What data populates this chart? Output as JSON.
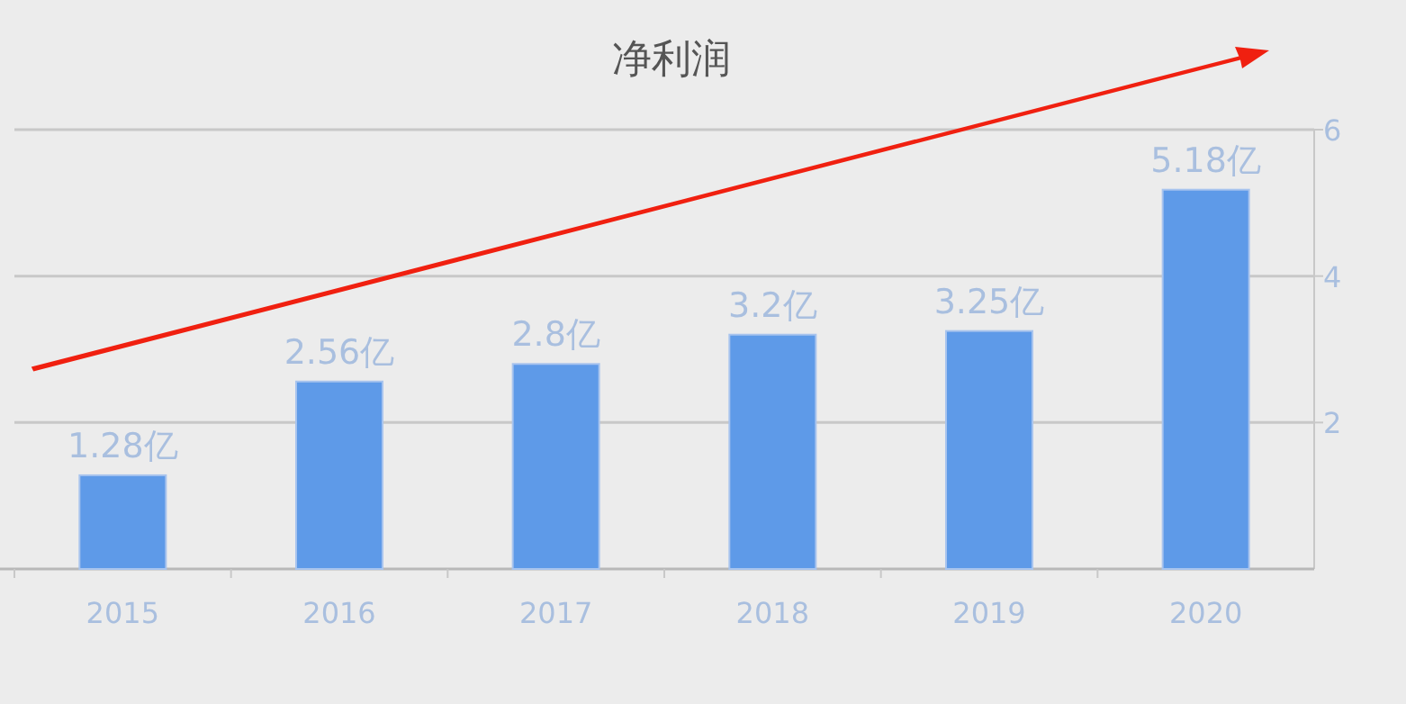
{
  "chart_data": {
    "type": "bar",
    "title": "净利润",
    "categories": [
      "2015",
      "2016",
      "2017",
      "2018",
      "2019",
      "2020"
    ],
    "values": [
      1.28,
      2.56,
      2.8,
      3.2,
      3.25,
      5.18
    ],
    "value_labels": [
      "1.28亿",
      "2.56亿",
      "2.8亿",
      "3.2亿",
      "3.25亿",
      "5.18亿"
    ],
    "color": "#5e9ae8",
    "ylim": [
      0,
      6
    ],
    "yticks": [
      2,
      4,
      6
    ],
    "grid": "y"
  }
}
